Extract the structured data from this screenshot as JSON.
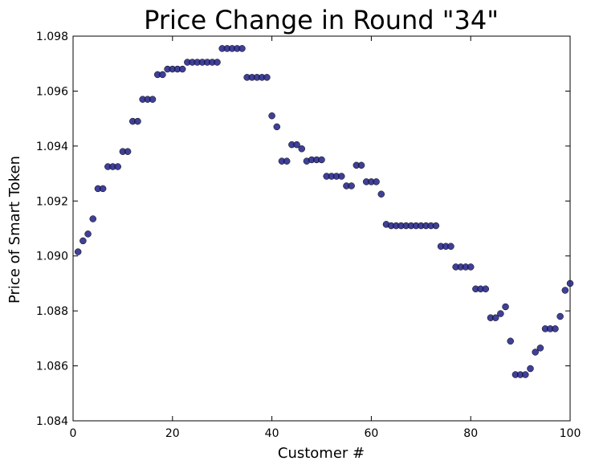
{
  "chart_data": {
    "type": "scatter",
    "title": "Price Change in Round \"34\"",
    "xlabel": "Customer #",
    "ylabel": "Price of Smart Token",
    "xlim": [
      0,
      100
    ],
    "ylim": [
      1.084,
      1.098
    ],
    "x_ticks": [
      "0",
      "20",
      "40",
      "60",
      "80",
      "100"
    ],
    "y_ticks": [
      "1.084",
      "1.086",
      "1.088",
      "1.090",
      "1.092",
      "1.094",
      "1.096",
      "1.098"
    ],
    "grid": false,
    "marker_color": "#2b2b8c",
    "series": [
      {
        "x": [
          1,
          2,
          3,
          4,
          5,
          6,
          7,
          8,
          9,
          10,
          11,
          12,
          13,
          14,
          15,
          16,
          17,
          18,
          19,
          20,
          21,
          22,
          23,
          24,
          25,
          26,
          27,
          28,
          29,
          30,
          31,
          32,
          33,
          34,
          35,
          36,
          37,
          38,
          39,
          40,
          41,
          42,
          43,
          44,
          45,
          46,
          47,
          48,
          49,
          50,
          51,
          52,
          53,
          54,
          55,
          56,
          57,
          58,
          59,
          60,
          61,
          62,
          63,
          64,
          65,
          66,
          67,
          68,
          69,
          70,
          71,
          72,
          73,
          74,
          75,
          76,
          77,
          78,
          79,
          80,
          81,
          82,
          83,
          84,
          85,
          86,
          87,
          88,
          89,
          90,
          91,
          92,
          93,
          94,
          95,
          96,
          97,
          98,
          99,
          100
        ],
        "y": [
          1.09015,
          1.09055,
          1.0908,
          1.09135,
          1.09245,
          1.09245,
          1.09325,
          1.09325,
          1.09325,
          1.0938,
          1.0938,
          1.0949,
          1.0949,
          1.0957,
          1.0957,
          1.0957,
          1.0966,
          1.0966,
          1.0968,
          1.0968,
          1.0968,
          1.0968,
          1.09705,
          1.09705,
          1.09705,
          1.09705,
          1.09705,
          1.09705,
          1.09705,
          1.09755,
          1.09755,
          1.09755,
          1.09755,
          1.09755,
          1.0965,
          1.0965,
          1.0965,
          1.0965,
          1.0965,
          1.0951,
          1.0947,
          1.09345,
          1.09345,
          1.09405,
          1.09405,
          1.0939,
          1.09345,
          1.0935,
          1.0935,
          1.0935,
          1.0929,
          1.0929,
          1.0929,
          1.0929,
          1.09255,
          1.09255,
          1.0933,
          1.0933,
          1.0927,
          1.0927,
          1.0927,
          1.09225,
          1.09115,
          1.0911,
          1.0911,
          1.0911,
          1.0911,
          1.0911,
          1.0911,
          1.0911,
          1.0911,
          1.0911,
          1.0911,
          1.09035,
          1.09035,
          1.09035,
          1.0896,
          1.0896,
          1.0896,
          1.0896,
          1.0888,
          1.0888,
          1.0888,
          1.08775,
          1.08775,
          1.0879,
          1.08815,
          1.0869,
          1.08568,
          1.08568,
          1.08568,
          1.0859,
          1.0865,
          1.08665,
          1.08735,
          1.08735,
          1.08735,
          1.0878,
          1.08875,
          1.089
        ]
      }
    ]
  }
}
